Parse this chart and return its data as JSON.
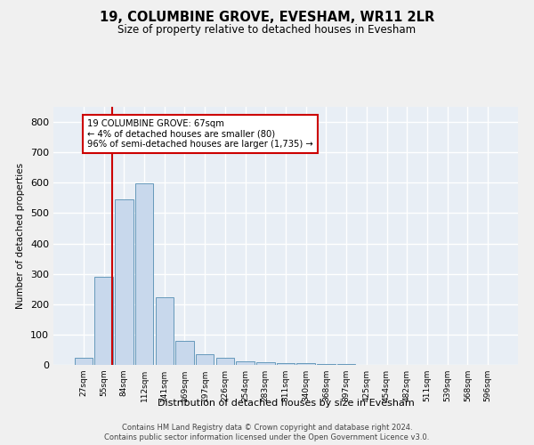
{
  "title": "19, COLUMBINE GROVE, EVESHAM, WR11 2LR",
  "subtitle": "Size of property relative to detached houses in Evesham",
  "xlabel": "Distribution of detached houses by size in Evesham",
  "ylabel": "Number of detached properties",
  "bar_color": "#c8d8ec",
  "bar_edge_color": "#6699bb",
  "background_color": "#e8eef5",
  "grid_color": "#ffffff",
  "bin_labels": [
    "27sqm",
    "55sqm",
    "84sqm",
    "112sqm",
    "141sqm",
    "169sqm",
    "197sqm",
    "226sqm",
    "254sqm",
    "283sqm",
    "311sqm",
    "340sqm",
    "368sqm",
    "397sqm",
    "425sqm",
    "454sqm",
    "482sqm",
    "511sqm",
    "539sqm",
    "568sqm",
    "596sqm"
  ],
  "bar_values": [
    22,
    290,
    545,
    598,
    222,
    80,
    34,
    23,
    13,
    10,
    7,
    5,
    3,
    2,
    1,
    1,
    0,
    0,
    0,
    0,
    0
  ],
  "ylim": [
    0,
    850
  ],
  "yticks": [
    0,
    100,
    200,
    300,
    400,
    500,
    600,
    700,
    800
  ],
  "annotation_text": "19 COLUMBINE GROVE: 67sqm\n← 4% of detached houses are smaller (80)\n96% of semi-detached houses are larger (1,735) →",
  "annotation_box_color": "#ffffff",
  "annotation_box_edge": "#cc0000",
  "red_line_color": "#cc0000",
  "footer_line1": "Contains HM Land Registry data © Crown copyright and database right 2024.",
  "footer_line2": "Contains public sector information licensed under the Open Government Licence v3.0."
}
